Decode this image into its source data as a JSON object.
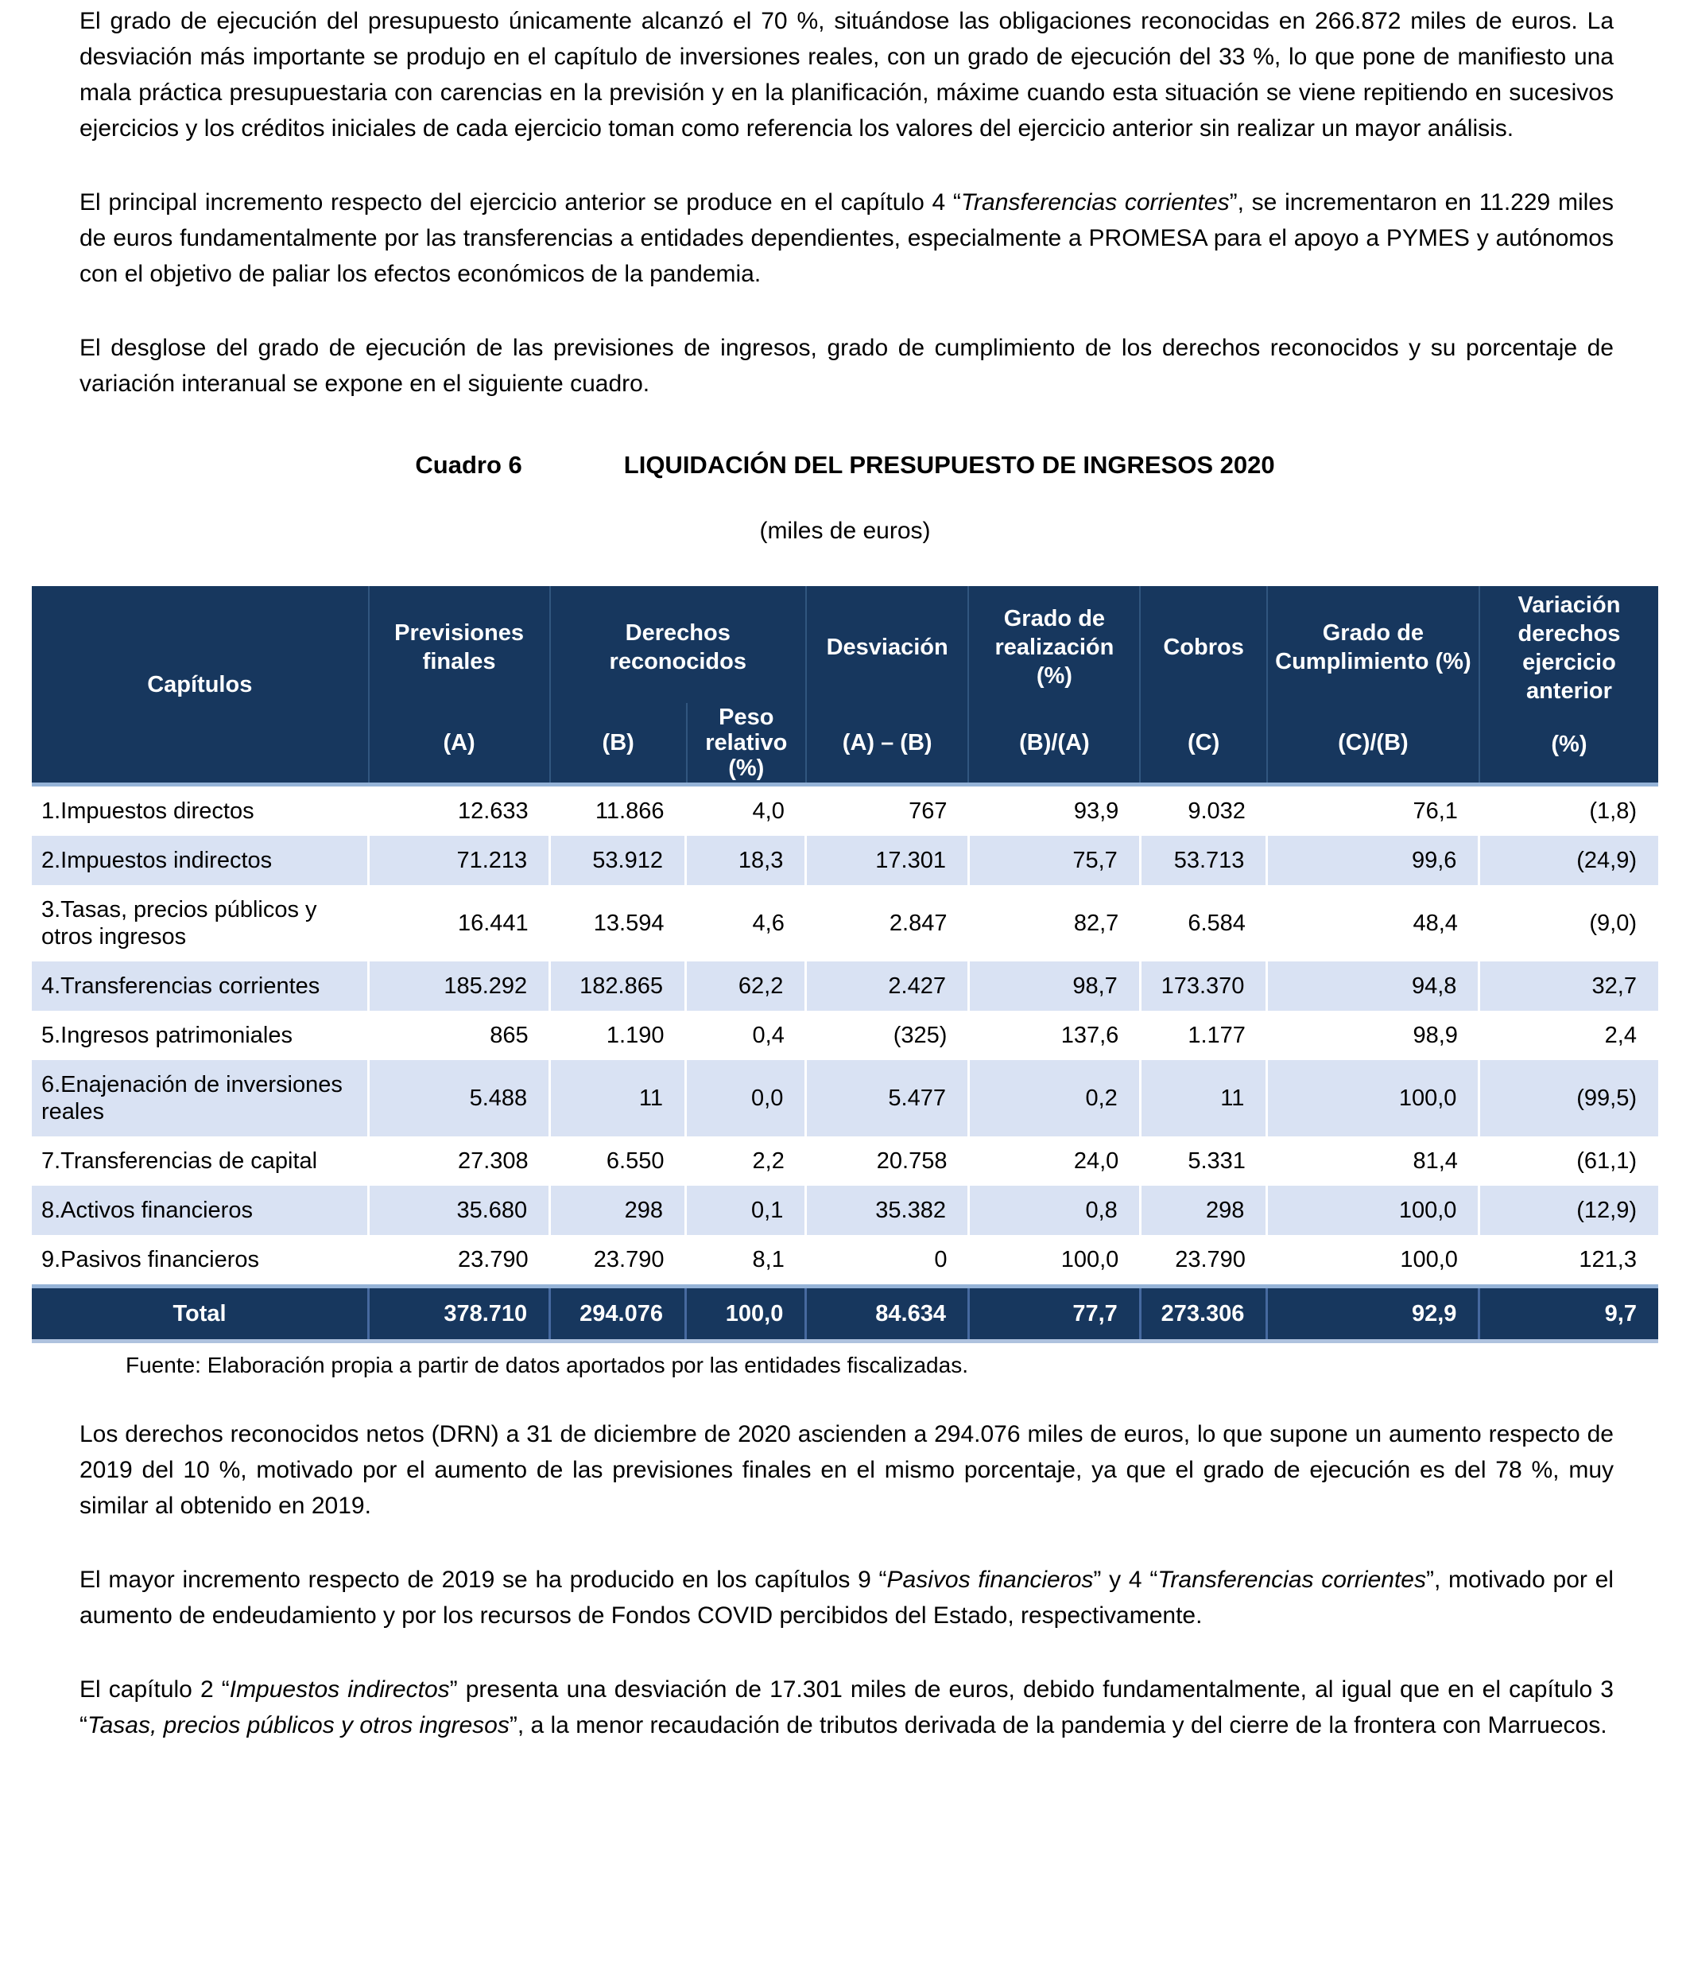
{
  "colors": {
    "header_navy": "#17375E",
    "row_stripe": "#D9E2F3",
    "border_light_blue": "#95B3D7"
  },
  "paragraphs": [
    {
      "segments": [
        {
          "text": "El grado de ejecución del presupuesto únicamente alcanzó el 70 %, situándose las obligaciones reconocidas en 266.872 miles de euros. La desviación más importante se produjo en el capítulo de inversiones reales, con un grado de ejecución del 33 %, lo que pone de manifiesto una mala práctica presupuestaria con carencias en la previsión y en la planificación, máxime cuando esta situación se viene repitiendo en sucesivos ejercicios y los créditos iniciales de cada ejercicio toman como referencia los valores del ejercicio anterior sin realizar un mayor análisis.",
          "italic": false
        }
      ]
    },
    {
      "segments": [
        {
          "text": "El principal incremento respecto del ejercicio anterior se produce en el capítulo 4 “",
          "italic": false
        },
        {
          "text": "Transferencias corrientes",
          "italic": true
        },
        {
          "text": "”, se incrementaron en 11.229 miles de euros fundamentalmente por las transferencias a entidades dependientes, especialmente a PROMESA para el apoyo a PYMES y autónomos con el objetivo de paliar los efectos económicos de la pandemia.",
          "italic": false
        }
      ]
    },
    {
      "segments": [
        {
          "text": "El desglose del grado de ejecución de las previsiones de ingresos, grado de cumplimiento de los derechos reconocidos y su porcentaje de variación interanual se expone en el siguiente cuadro.",
          "italic": false
        }
      ]
    },
    {
      "segments": [
        {
          "text": "Los derechos reconocidos netos (DRN) a 31 de diciembre de 2020 ascienden a 294.076 miles de euros, lo que supone un aumento respecto de 2019 del 10 %, motivado por el aumento de las previsiones finales en el mismo porcentaje, ya que el grado de ejecución es del 78 %, muy similar al obtenido en 2019.",
          "italic": false
        }
      ]
    },
    {
      "segments": [
        {
          "text": "El mayor incremento respecto de 2019 se ha producido en los capítulos 9 “",
          "italic": false
        },
        {
          "text": "Pasivos financieros",
          "italic": true
        },
        {
          "text": "” y 4 “",
          "italic": false
        },
        {
          "text": "Transferencias corrientes",
          "italic": true
        },
        {
          "text": "”, motivado por el aumento de endeudamiento y por los recursos de Fondos COVID percibidos del Estado, respectivamente.",
          "italic": false
        }
      ]
    },
    {
      "segments": [
        {
          "text": "El capítulo 2 “",
          "italic": false
        },
        {
          "text": "Impuestos indirectos",
          "italic": true
        },
        {
          "text": "” presenta una desviación de 17.301 miles de euros, debido fundamentalmente, al igual que en el capítulo 3 “",
          "italic": false
        },
        {
          "text": "Tasas, precios públicos y otros ingresos",
          "italic": true
        },
        {
          "text": "”, a la menor recaudación de tributos derivada de la pandemia y del cierre de la frontera con Marruecos.",
          "italic": false
        }
      ]
    }
  ],
  "table": {
    "title_label": "Cuadro 6",
    "title": "LIQUIDACIÓN DEL PRESUPUESTO DE INGRESOS 2020",
    "subtitle": "(miles de euros)",
    "source": "Fuente: Elaboración propia a partir de datos aportados por las entidades fiscalizadas.",
    "header": {
      "capitulos": "Capítulos",
      "previsiones": "Previsiones finales",
      "previsiones_sub": "(A)",
      "derechos": "Derechos reconocidos",
      "derechos_sub": "(B)",
      "peso": "Peso relativo (%)",
      "desviacion": "Desviación",
      "desviacion_sub": "(A) – (B)",
      "grado_realizacion": "Grado de realización (%)",
      "grado_realizacion_sub": "(B)/(A)",
      "cobros": "Cobros",
      "cobros_sub": "(C)",
      "grado_cumplimiento": "Grado de Cumplimiento (%)",
      "grado_cumplimiento_sub": "(C)/(B)",
      "variacion": "Variación derechos ejercicio anterior",
      "variacion_sub": "(%)"
    },
    "rows": [
      {
        "capitulo": "1.Impuestos directos",
        "values": [
          "12.633",
          "11.866",
          "4,0",
          "767",
          "93,9",
          "9.032",
          "76,1",
          "(1,8)"
        ]
      },
      {
        "capitulo": "2.Impuestos indirectos",
        "values": [
          "71.213",
          "53.912",
          "18,3",
          "17.301",
          "75,7",
          "53.713",
          "99,6",
          "(24,9)"
        ]
      },
      {
        "capitulo": "3.Tasas, precios públicos y otros ingresos",
        "values": [
          "16.441",
          "13.594",
          "4,6",
          "2.847",
          "82,7",
          "6.584",
          "48,4",
          "(9,0)"
        ]
      },
      {
        "capitulo": "4.Transferencias corrientes",
        "values": [
          "185.292",
          "182.865",
          "62,2",
          "2.427",
          "98,7",
          "173.370",
          "94,8",
          "32,7"
        ]
      },
      {
        "capitulo": "5.Ingresos patrimoniales",
        "values": [
          "865",
          "1.190",
          "0,4",
          "(325)",
          "137,6",
          "1.177",
          "98,9",
          "2,4"
        ]
      },
      {
        "capitulo": "6.Enajenación de inversiones reales",
        "values": [
          "5.488",
          "11",
          "0,0",
          "5.477",
          "0,2",
          "11",
          "100,0",
          "(99,5)"
        ]
      },
      {
        "capitulo": "7.Transferencias de capital",
        "values": [
          "27.308",
          "6.550",
          "2,2",
          "20.758",
          "24,0",
          "5.331",
          "81,4",
          "(61,1)"
        ]
      },
      {
        "capitulo": "8.Activos financieros",
        "values": [
          "35.680",
          "298",
          "0,1",
          "35.382",
          "0,8",
          "298",
          "100,0",
          "(12,9)"
        ]
      },
      {
        "capitulo": "9.Pasivos financieros",
        "values": [
          "23.790",
          "23.790",
          "8,1",
          "0",
          "100,0",
          "23.790",
          "100,0",
          "121,3"
        ]
      }
    ],
    "total": {
      "label": "Total",
      "values": [
        "378.710",
        "294.076",
        "100,0",
        "84.634",
        "77,7",
        "273.306",
        "92,9",
        "9,7"
      ]
    }
  }
}
